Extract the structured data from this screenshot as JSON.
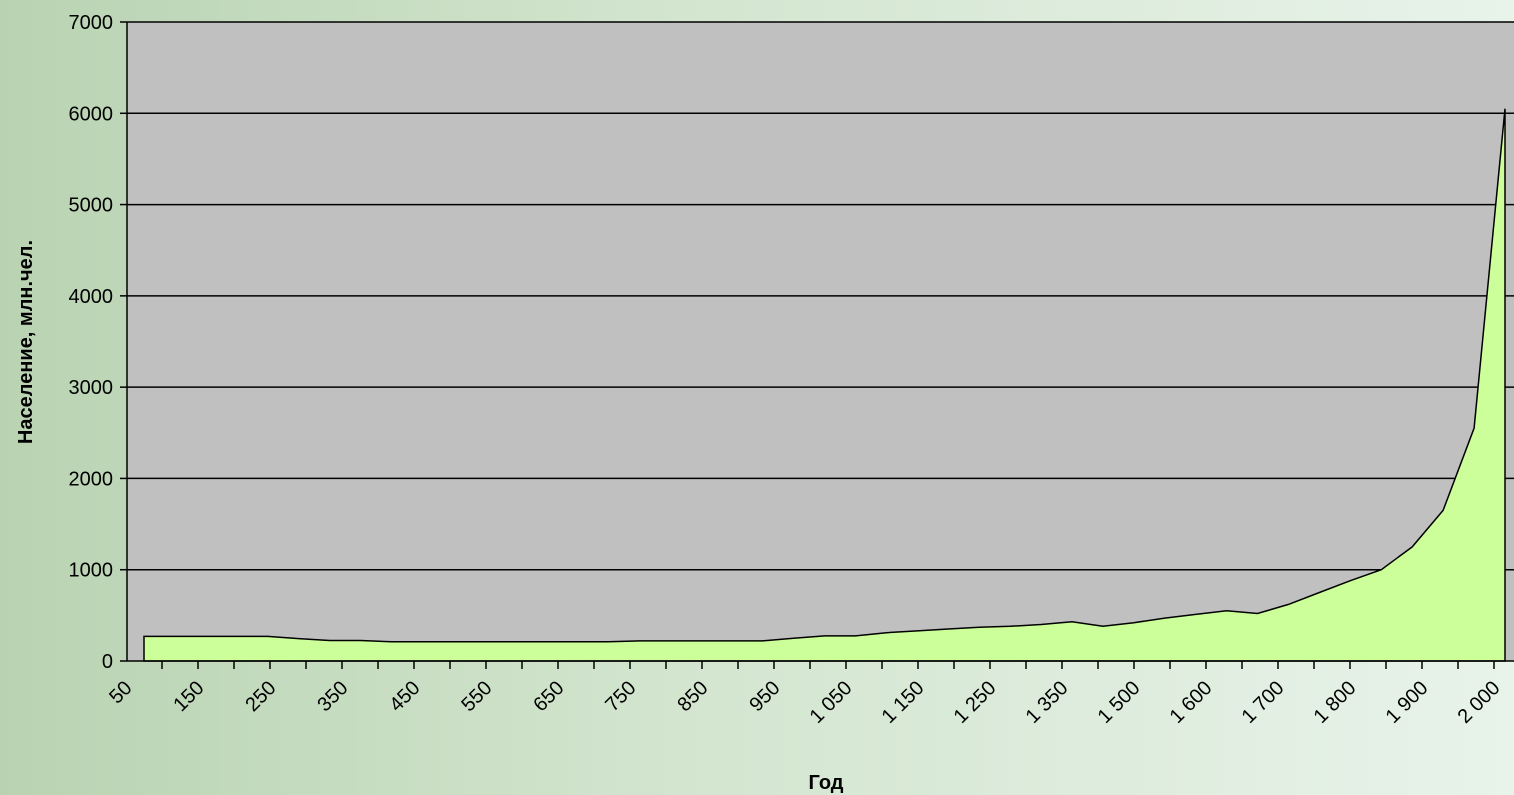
{
  "chart_data": {
    "type": "area",
    "title": "",
    "xlabel": "Год",
    "ylabel": "Население, млн.чел.",
    "ylim": [
      0,
      7000
    ],
    "yticks": [
      "0",
      "1000",
      "2000",
      "3000",
      "4000",
      "5000",
      "6000",
      "7000"
    ],
    "xtick_labels": [
      "50",
      "150",
      "250",
      "350",
      "450",
      "550",
      "650",
      "750",
      "850",
      "950",
      "1 050",
      "1 150",
      "1 250",
      "1 350",
      "1 500",
      "1 600",
      "1 700",
      "1 800",
      "1 900",
      "2 000"
    ],
    "grid": true,
    "series": [
      {
        "values": [
          270,
          270,
          270,
          270,
          270,
          245,
          225,
          225,
          210,
          210,
          210,
          210,
          210,
          210,
          210,
          210,
          220,
          220,
          220,
          220,
          220,
          250,
          275,
          275,
          310,
          330,
          350,
          370,
          380,
          400,
          430,
          380,
          420,
          470,
          510,
          550,
          520,
          620,
          750,
          880,
          1000,
          1250,
          1650,
          2550,
          6050
        ]
      }
    ],
    "colors": {
      "area_fill": "#ccff99",
      "plot_bg": "#c0c0c0"
    }
  }
}
